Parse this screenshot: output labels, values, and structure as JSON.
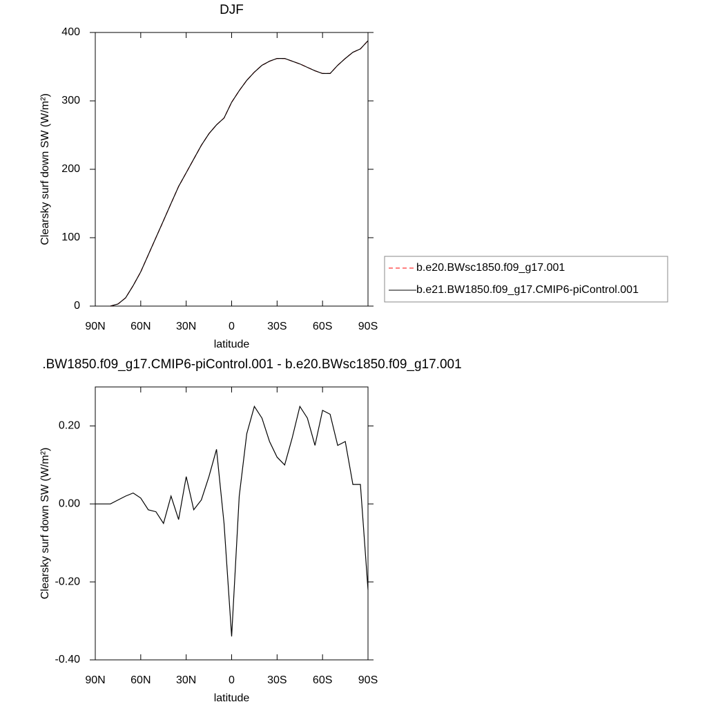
{
  "chart_data": [
    {
      "type": "line",
      "title": "DJF",
      "x_label": "latitude",
      "y_label": "Clearsky surf down SW (W/m²)",
      "x": [
        90,
        85,
        80,
        75,
        70,
        65,
        60,
        55,
        50,
        45,
        40,
        35,
        30,
        25,
        20,
        15,
        10,
        5,
        0,
        -5,
        -10,
        -15,
        -20,
        -25,
        -30,
        -35,
        -40,
        -45,
        -50,
        -55,
        -60,
        -65,
        -70,
        -75,
        -80,
        -85,
        -90
      ],
      "xlim": [
        90,
        -90
      ],
      "xticks": [
        {
          "value": 90,
          "label": "90N"
        },
        {
          "value": 60,
          "label": "60N"
        },
        {
          "value": 30,
          "label": "30N"
        },
        0,
        {
          "value": -30,
          "label": "30S"
        },
        {
          "value": -60,
          "label": "60S"
        },
        {
          "value": -90,
          "label": "90S"
        }
      ],
      "ylim": [
        0,
        400
      ],
      "yticks": [
        0,
        100,
        200,
        300,
        400
      ],
      "legend": "right",
      "series": [
        {
          "name": "b.e20.BWsc1850.f09_g17.001",
          "color": "#ff0000",
          "dash": true,
          "values": [
            null,
            null,
            0,
            3,
            12,
            30,
            50,
            75,
            100,
            125,
            150,
            175,
            195,
            215,
            235,
            252,
            265,
            275,
            298,
            315,
            330,
            342,
            352,
            358,
            362,
            362,
            358,
            354,
            349,
            344,
            340,
            340,
            352,
            362,
            371,
            376,
            388
          ]
        },
        {
          "name": "b.e21.BW1850.f09_g17.CMIP6-piControl.001",
          "color": "#000000",
          "dash": false,
          "values": [
            null,
            null,
            0,
            3,
            12,
            30,
            50,
            75,
            100,
            125,
            150,
            175,
            195,
            215,
            235,
            252,
            265,
            275,
            298,
            315,
            330,
            342,
            352,
            358,
            362,
            362,
            358,
            354,
            349,
            344,
            340,
            340,
            352,
            362,
            371,
            376,
            388
          ]
        }
      ]
    },
    {
      "type": "line",
      "title": ".BW1850.f09_g17.CMIP6-piControl.001 - b.e20.BWsc1850.f09_g17.001",
      "x_label": "latitude",
      "y_label": "Clearsky surf down SW (W/m²)",
      "x": [
        90,
        85,
        80,
        75,
        70,
        65,
        60,
        55,
        50,
        45,
        40,
        35,
        30,
        25,
        20,
        15,
        10,
        5,
        0,
        -5,
        -10,
        -15,
        -20,
        -25,
        -30,
        -35,
        -40,
        -45,
        -50,
        -55,
        -60,
        -65,
        -70,
        -75,
        -80,
        -85,
        -90
      ],
      "xlim": [
        90,
        -90
      ],
      "xticks": [
        {
          "value": 90,
          "label": "90N"
        },
        {
          "value": 60,
          "label": "60N"
        },
        {
          "value": 30,
          "label": "30N"
        },
        0,
        {
          "value": -30,
          "label": "30S"
        },
        {
          "value": -60,
          "label": "60S"
        },
        {
          "value": -90,
          "label": "90S"
        }
      ],
      "ylim": [
        -0.4,
        0.3
      ],
      "yticks": [
        {
          "value": -0.4,
          "label": "-0.40"
        },
        {
          "value": -0.2,
          "label": "-0.20"
        },
        {
          "value": 0,
          "label": "0.00"
        },
        {
          "value": 0.2,
          "label": "0.20"
        }
      ],
      "series": [
        {
          "color": "#000000",
          "dash": false,
          "values": [
            0,
            0,
            0,
            0.01,
            0.02,
            0.028,
            0.015,
            -0.015,
            -0.02,
            -0.05,
            0.02,
            -0.04,
            0.07,
            -0.015,
            0.01,
            0.07,
            0.14,
            -0.05,
            -0.34,
            0.02,
            0.18,
            0.25,
            0.22,
            0.16,
            0.12,
            0.1,
            0.17,
            0.25,
            0.22,
            0.15,
            0.24,
            0.23,
            0.15,
            0.16,
            0.05,
            0.05,
            -0.22
          ]
        }
      ]
    }
  ]
}
